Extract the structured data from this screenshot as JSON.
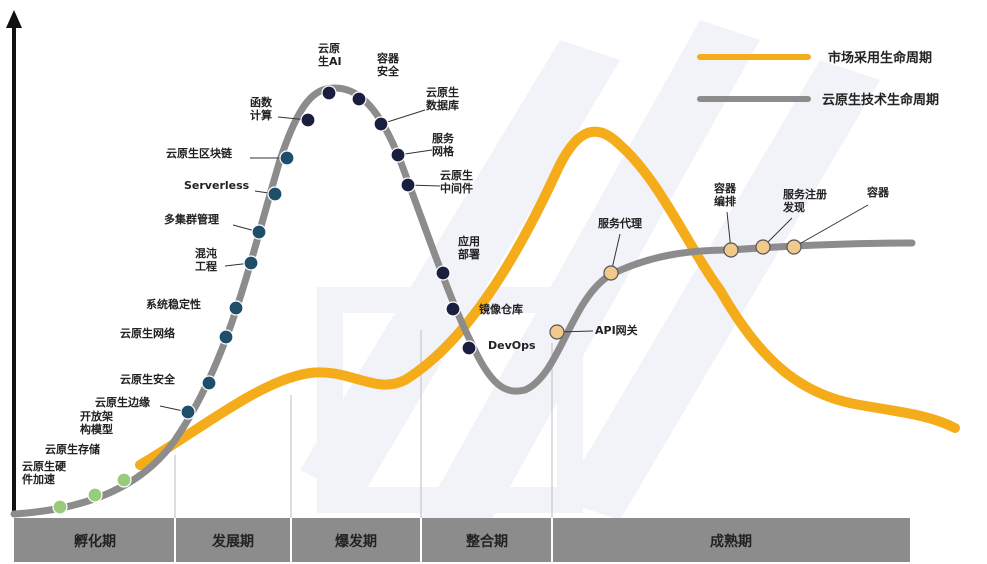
{
  "legend": {
    "market_label": "市场采用生命周期",
    "tech_label": "云原生技术生命周期",
    "market_color": "#F5AC1B",
    "tech_color": "#8C8C8C"
  },
  "phases": [
    {
      "label": "孵化期"
    },
    {
      "label": "发展期"
    },
    {
      "label": "爆发期"
    },
    {
      "label": "整合期"
    },
    {
      "label": "成熟期"
    }
  ],
  "colors": {
    "phase_bar": "#8C8C8C",
    "early_dot": "#9ACB7C",
    "mid_dot": "#1F4E6B",
    "peak_dot": "#1B1F3F",
    "mature_dot": "#F2C98A",
    "axis": "#111111",
    "watermark": "#E4E8F2"
  },
  "tech_items": [
    {
      "lines": [
        "云原生硬",
        "件加速"
      ],
      "dot": "early"
    },
    {
      "lines": [
        "云原生存储"
      ],
      "dot": "early"
    },
    {
      "lines": [
        "开放架",
        "构模型"
      ],
      "dot": "early"
    },
    {
      "lines": [
        "云原生边缘"
      ],
      "dot": "mid"
    },
    {
      "lines": [
        "云原生安全"
      ],
      "dot": "mid"
    },
    {
      "lines": [
        "云原生网络"
      ],
      "dot": "mid"
    },
    {
      "lines": [
        "系统稳定性"
      ],
      "dot": "mid"
    },
    {
      "lines": [
        "混沌",
        "工程"
      ],
      "dot": "mid"
    },
    {
      "lines": [
        "多集群管理"
      ],
      "dot": "mid"
    },
    {
      "lines": [
        "Serverless"
      ],
      "dot": "mid"
    },
    {
      "lines": [
        "云原生区块链"
      ],
      "dot": "mid"
    },
    {
      "lines": [
        "函数",
        "计算"
      ],
      "dot": "peak"
    },
    {
      "lines": [
        "云原",
        "生AI"
      ],
      "dot": "peak"
    },
    {
      "lines": [
        "容器",
        "安全"
      ],
      "dot": "peak"
    },
    {
      "lines": [
        "云原生",
        "数据库"
      ],
      "dot": "peak"
    },
    {
      "lines": [
        "服务",
        "网格"
      ],
      "dot": "peak"
    },
    {
      "lines": [
        "云原生",
        "中间件"
      ],
      "dot": "peak"
    },
    {
      "lines": [
        "应用",
        "部署"
      ],
      "dot": "peak"
    },
    {
      "lines": [
        "镜像仓库"
      ],
      "dot": "peak"
    },
    {
      "lines": [
        "DevOps"
      ],
      "dot": "peak"
    },
    {
      "lines": [
        "API网关"
      ],
      "dot": "mature"
    },
    {
      "lines": [
        "服务代理"
      ],
      "dot": "mature"
    },
    {
      "lines": [
        "容器",
        "编排"
      ],
      "dot": "mature"
    },
    {
      "lines": [
        "服务注册",
        "发现"
      ],
      "dot": "mature"
    },
    {
      "lines": [
        "容器"
      ],
      "dot": "mature"
    }
  ]
}
